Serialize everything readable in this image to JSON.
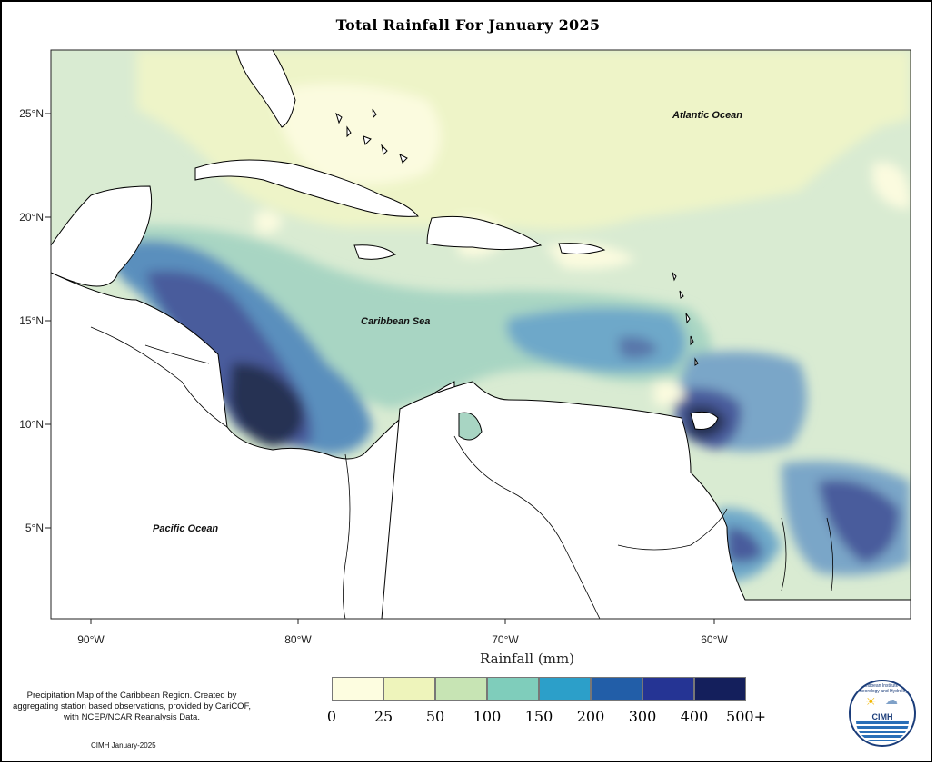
{
  "title": "Total Rainfall For January 2025",
  "map": {
    "lat_ticks": [
      "25°N",
      "20°N",
      "15°N",
      "10°N",
      "5°N"
    ],
    "lon_ticks": [
      "90°W",
      "80°W",
      "70°W",
      "60°W"
    ],
    "labels": {
      "atlantic": "Atlantic Ocean",
      "caribbean": "Caribbean Sea",
      "pacific": "Pacific Ocean"
    }
  },
  "legend": {
    "title": "Rainfall (mm)",
    "labels": [
      "0",
      "25",
      "50",
      "100",
      "150",
      "200",
      "300",
      "400",
      "500+"
    ],
    "colors": [
      "#fdfde0",
      "#eef4bb",
      "#c7e4b4",
      "#7fcdbb",
      "#2c9fc9",
      "#225ea8",
      "#253494",
      "#141f5c"
    ]
  },
  "notes": {
    "description": "Precipitation Map of the Caribbean Region. Created by aggregating station based observations, provided by CariCOF, with NCEP/NCAR Reanalysis Data.",
    "credit": "CIMH January-2025"
  },
  "logo": {
    "name": "CIMH",
    "ring": "Caribbean Institute for Meteorology and Hydrology"
  }
}
